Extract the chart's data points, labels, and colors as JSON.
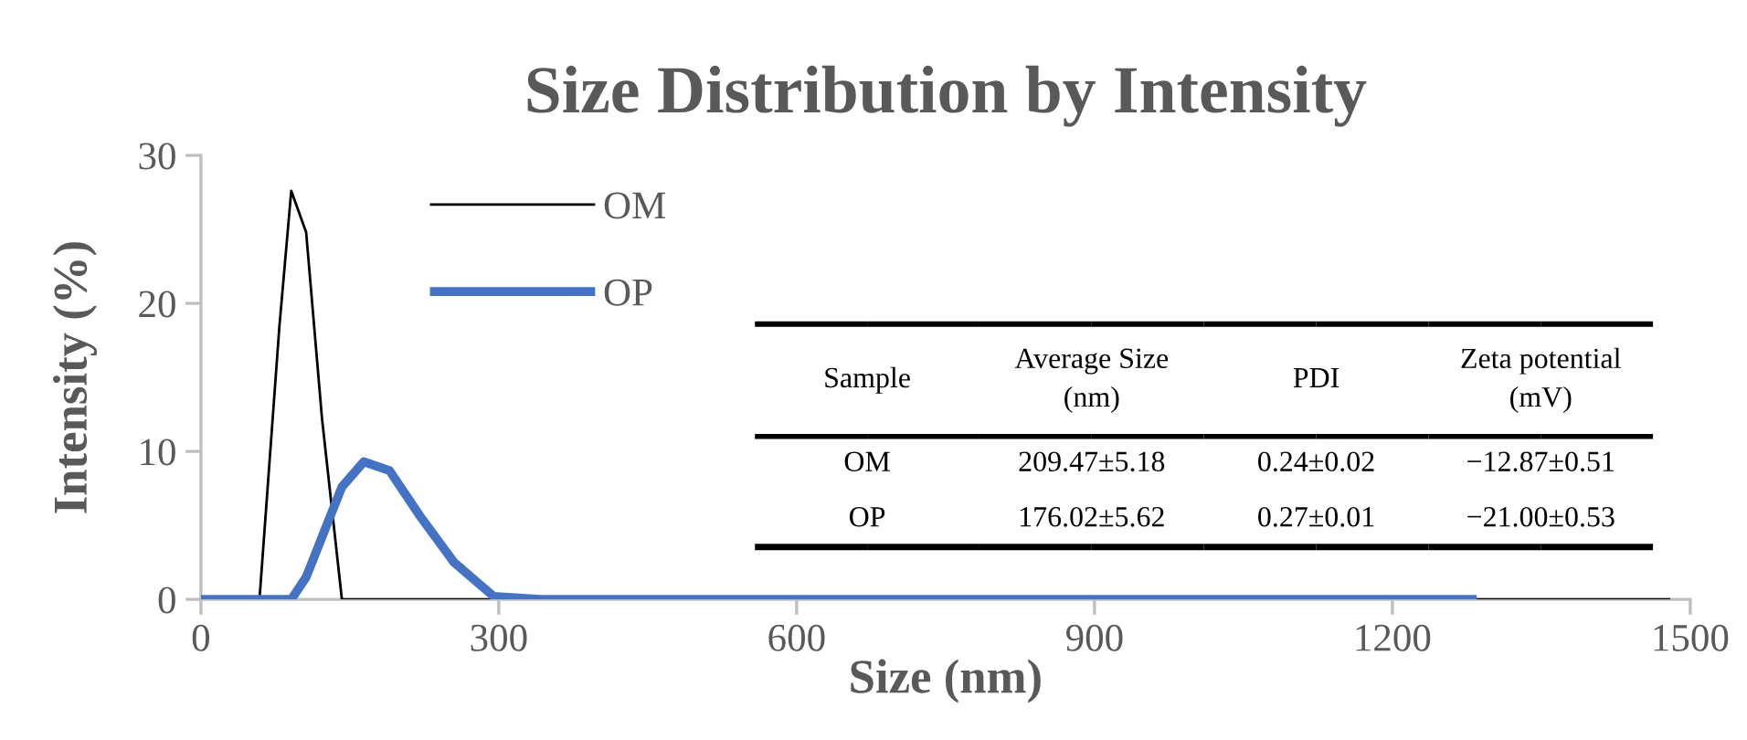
{
  "chart_data": {
    "type": "line",
    "title": "Size Distribution by Intensity",
    "xlabel": "Size (nm)",
    "ylabel": "Intensity (%)",
    "series": [
      {
        "name": "OM",
        "color": "#000000",
        "x": [
          0,
          59,
          79,
          91,
          106,
          122,
          142,
          1480
        ],
        "values": [
          0,
          0,
          18.4,
          27.6,
          24.8,
          12.2,
          0,
          0
        ]
      },
      {
        "name": "OP",
        "color": "#4472c4",
        "x": [
          0,
          91,
          106,
          142,
          164,
          190,
          220,
          255,
          295,
          342,
          1285
        ],
        "values": [
          0,
          0,
          1.5,
          7.6,
          9.3,
          8.7,
          5.7,
          2.5,
          0.2,
          0,
          0
        ]
      }
    ],
    "xlim": [
      0,
      1500
    ],
    "xticks": [
      0,
      300,
      600,
      900,
      1200,
      1500
    ],
    "ylim": [
      0,
      30
    ],
    "yticks": [
      0,
      10,
      20,
      30
    ],
    "legend": "top left",
    "line_style": "solid",
    "marker": "none",
    "annotations": [
      "Sample",
      "Average Size\n(nm)",
      "PDI",
      "Zeta potential\n(mV)",
      "OM",
      "209.47±5.18",
      "0.24±0.02",
      "−12.87±0.51",
      "OP",
      "176.02±5.62",
      "0.27±0.01",
      "−21.00±0.53"
    ]
  }
}
